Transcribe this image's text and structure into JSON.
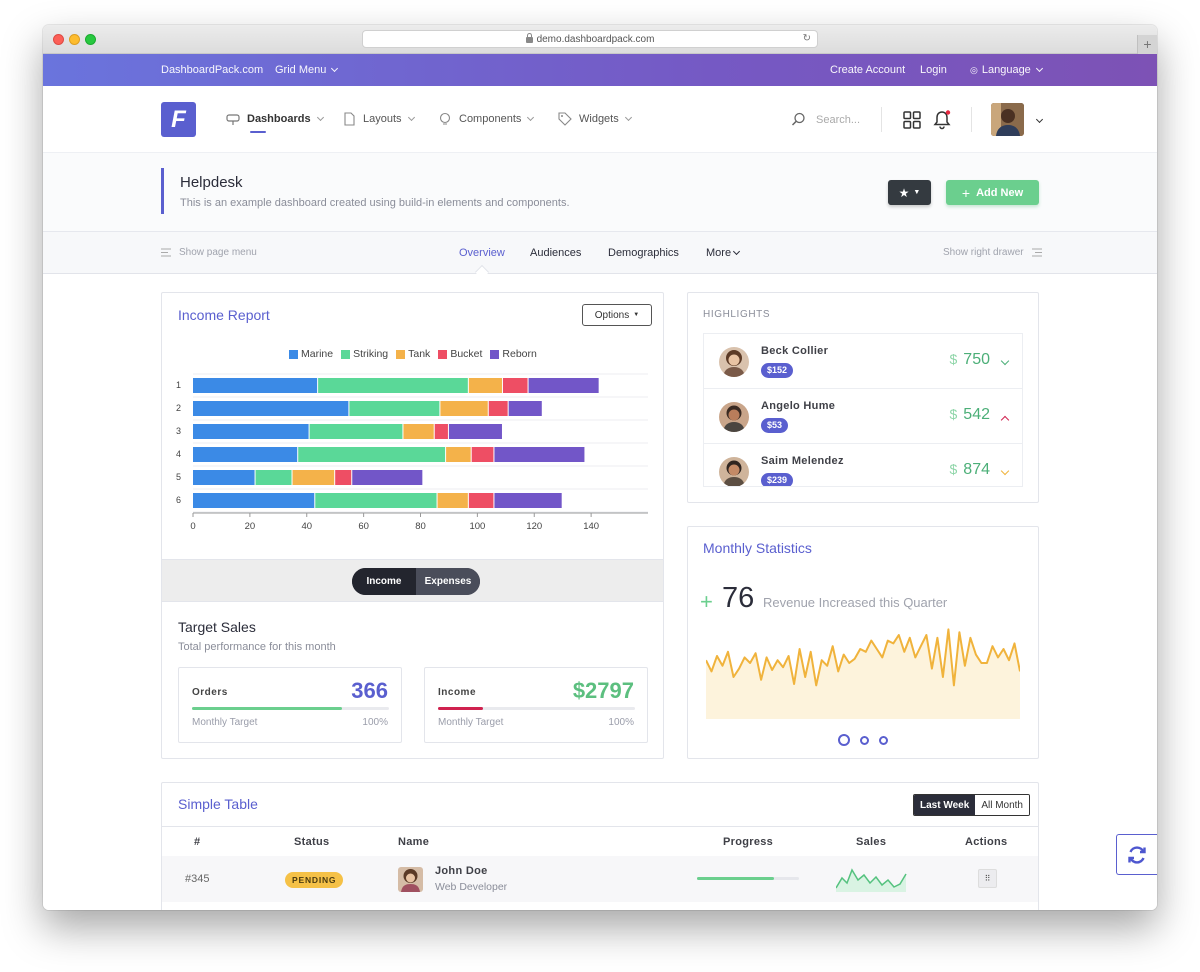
{
  "browser": {
    "url": "demo.dashboardpack.com",
    "new_tab": "+"
  },
  "topbar": {
    "brand": "DashboardPack.com",
    "grid_menu": "Grid Menu",
    "create_account": "Create Account",
    "login": "Login",
    "language": "Language",
    "colors": {
      "start": "#6a74dd",
      "end": "#7d52b5"
    }
  },
  "header": {
    "logo_letter": "F",
    "nav": [
      {
        "label": "Dashboards",
        "icon": "dashboard-icon",
        "active": true
      },
      {
        "label": "Layouts",
        "icon": "file-icon"
      },
      {
        "label": "Components",
        "icon": "bulb-icon"
      },
      {
        "label": "Widgets",
        "icon": "tag-icon"
      }
    ],
    "search_placeholder": "Search..."
  },
  "page": {
    "title": "Helpdesk",
    "subtitle": "This is an example dashboard created using build-in elements and components.",
    "add_new": "Add New",
    "accent": "#5a5fcf"
  },
  "subnav": {
    "show_page_menu": "Show page menu",
    "tabs": [
      "Overview",
      "Audiences",
      "Demographics",
      "More"
    ],
    "show_right_drawer": "Show right drawer"
  },
  "income": {
    "title": "Income Report",
    "options": "Options",
    "toggle": {
      "income": "Income",
      "expenses": "Expenses"
    },
    "target_title": "Target Sales",
    "target_sub": "Total performance for this month",
    "stats": [
      {
        "label": "Orders",
        "value": "366",
        "sub": "Monthly Target",
        "pct": "100%",
        "progress": 0.76,
        "color": "#5a5fcf",
        "bar": "#6bcf8e"
      },
      {
        "label": "Income",
        "value": "$2797",
        "sub": "Monthly Target",
        "pct": "100%",
        "progress": 0.23,
        "color": "#5cbf7f",
        "bar": "#d0224f"
      }
    ]
  },
  "chart_data": {
    "type": "bar",
    "orientation": "horizontal",
    "stacked": true,
    "categories": [
      "1",
      "2",
      "3",
      "4",
      "5",
      "6"
    ],
    "series": [
      {
        "name": "Marine",
        "color": "#3b8ae6",
        "values": [
          44,
          55,
          41,
          37,
          22,
          43
        ]
      },
      {
        "name": "Striking",
        "color": "#5ad898",
        "values": [
          53,
          32,
          33,
          52,
          13,
          43
        ]
      },
      {
        "name": "Tank",
        "color": "#f4b24a",
        "values": [
          12,
          17,
          11,
          9,
          15,
          11
        ]
      },
      {
        "name": "Bucket",
        "color": "#ee4e64",
        "values": [
          9,
          7,
          5,
          8,
          6,
          9
        ]
      },
      {
        "name": "Reborn",
        "color": "#7256c8",
        "values": [
          25,
          12,
          19,
          32,
          25,
          24
        ]
      }
    ],
    "x_ticks": [
      0,
      20,
      40,
      60,
      80,
      100,
      120,
      140
    ],
    "xlim": [
      0,
      160
    ],
    "legend_position": "top"
  },
  "highlights": {
    "title": "HIGHLIGHTS",
    "items": [
      {
        "name": "Beck Collier",
        "badge": "$152",
        "currency": "$",
        "amount": "750",
        "trend": "down",
        "arrow_color": "#4caf78"
      },
      {
        "name": "Angelo Hume",
        "badge": "$53",
        "currency": "$",
        "amount": "542",
        "trend": "up",
        "arrow_color": "#d0224f"
      },
      {
        "name": "Saim Melendez",
        "badge": "$239",
        "currency": "$",
        "amount": "874",
        "trend": "down",
        "arrow_color": "#f0b33c"
      }
    ]
  },
  "monthly": {
    "title": "Monthly Statistics",
    "plus": "+",
    "number": "76",
    "text": "Revenue Increased this Quarter",
    "spark": [
      42,
      34,
      45,
      38,
      48,
      30,
      36,
      44,
      40,
      47,
      28,
      44,
      35,
      42,
      37,
      45,
      25,
      50,
      30,
      48,
      24,
      42,
      38,
      52,
      34,
      46,
      40,
      43,
      50,
      48,
      56,
      50,
      44,
      56,
      54,
      60,
      48,
      58,
      44,
      52,
      60,
      36,
      58,
      30,
      64,
      24,
      62,
      38,
      58,
      46,
      40,
      40,
      52,
      44,
      50,
      42,
      54,
      34
    ],
    "spark_color": "#f0b33c",
    "carousel_dots": 3,
    "active_dot": 0
  },
  "table": {
    "title": "Simple Table",
    "last_week": "Last Week",
    "all_month": "All Month",
    "columns": [
      "#",
      "Status",
      "Name",
      "Progress",
      "Sales",
      "Actions"
    ],
    "rows": [
      {
        "id": "#345",
        "status": "PENDING",
        "name": "John Doe",
        "role": "Web Developer",
        "progress": 0.75
      }
    ]
  }
}
